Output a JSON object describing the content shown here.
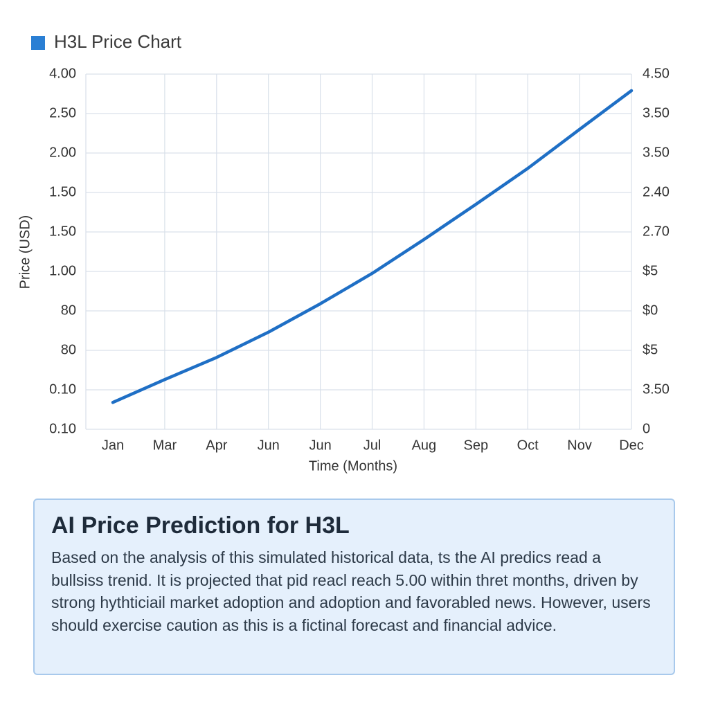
{
  "chart_data": {
    "type": "line",
    "title": "H3L Price Chart",
    "ylabel": "Price (USD)",
    "xlabel": "Time (Months)",
    "categories": [
      "Jan",
      "Mar",
      "Apr",
      "Jun",
      "Jun",
      "Jul",
      "Aug",
      "Sep",
      "Oct",
      "Nov",
      "Dec"
    ],
    "values": [
      0.68,
      1.26,
      1.82,
      2.46,
      3.18,
      3.95,
      4.81,
      5.7,
      6.61,
      7.6,
      8.58
    ],
    "color": "#1f6fc5",
    "ylim": [
      0,
      9
    ],
    "yticks": [
      {
        "value": 0,
        "label": "0.10"
      },
      {
        "value": 1,
        "label": "0.10"
      },
      {
        "value": 2,
        "label": "80"
      },
      {
        "value": 3,
        "label": "80"
      },
      {
        "value": 4,
        "label": "1.00"
      },
      {
        "value": 5,
        "label": "1.50"
      },
      {
        "value": 6,
        "label": "1.50"
      },
      {
        "value": 7,
        "label": "2.00"
      },
      {
        "value": 8,
        "label": "2.50"
      },
      {
        "value": 9,
        "label": "4.00"
      }
    ],
    "y2lim": [
      0,
      9
    ],
    "y2ticks": [
      0,
      {
        "value": 1,
        "label": "3.50"
      },
      {
        "value": 2,
        "label": "$5"
      },
      {
        "value": 3,
        "label": "$0"
      },
      {
        "value": 4,
        "label": "$5"
      },
      {
        "value": 5,
        "label": "2.70"
      },
      {
        "value": 6,
        "label": "2.40"
      },
      {
        "value": 7,
        "label": "3.50"
      },
      {
        "value": 8,
        "label": "3.50"
      },
      {
        "value": 9,
        "label": "4.50"
      }
    ],
    "grid": true
  },
  "prediction": {
    "title": "AI Price Prediction for H3L",
    "body": "Based on the analysis of this simulated historical  data, ts the AI predics read a bullsiss trenid. It is projected that pid reacl reach 5.00 within thret months, driven by strong hythticiail market adoption and adoption and favorabled news. However, users should exercise caution as this is a fictinal forecast and financial advice."
  }
}
